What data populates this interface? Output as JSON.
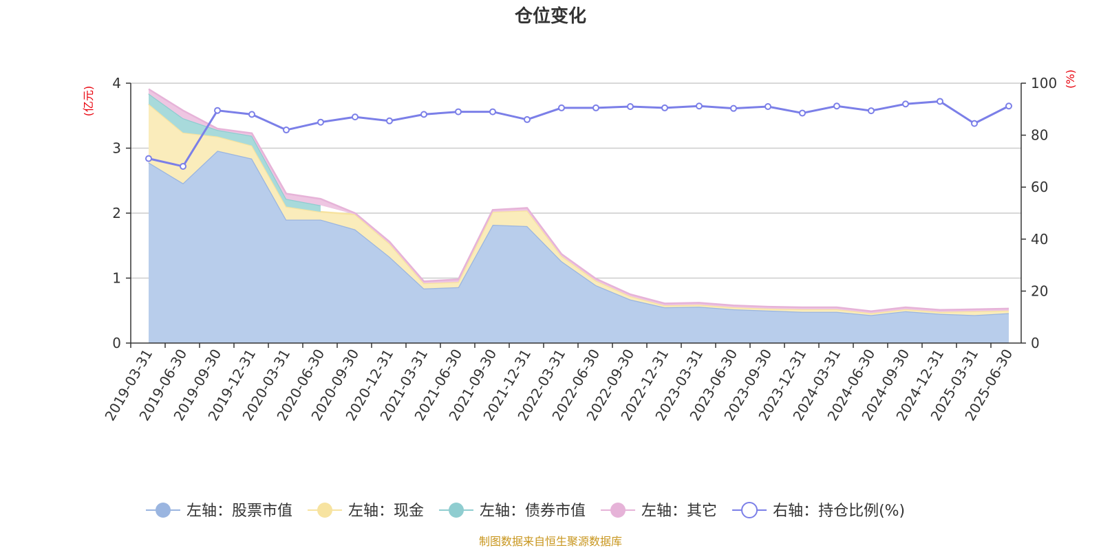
{
  "chart_data": {
    "type": "area",
    "title": "仓位变化",
    "left_unit": "(亿元)",
    "right_unit": "(%)",
    "categories": [
      "2019-03-31",
      "2019-06-30",
      "2019-09-30",
      "2019-12-31",
      "2020-03-31",
      "2020-06-30",
      "2020-09-30",
      "2020-12-31",
      "2021-03-31",
      "2021-06-30",
      "2021-09-30",
      "2021-12-31",
      "2022-03-31",
      "2022-06-30",
      "2022-09-30",
      "2022-12-31",
      "2023-03-31",
      "2023-06-30",
      "2023-09-30",
      "2023-12-31",
      "2024-03-31",
      "2024-06-30",
      "2024-09-30",
      "2024-12-31",
      "2025-03-31",
      "2025-06-30"
    ],
    "left_axis": {
      "min": 0,
      "max": 4,
      "ticks": [
        "0",
        "1",
        "2",
        "3",
        "4"
      ]
    },
    "right_axis": {
      "min": 0,
      "max": 100,
      "ticks": [
        "0",
        "20",
        "40",
        "60",
        "80",
        "100"
      ]
    },
    "series": [
      {
        "name": "左轴：股票市值",
        "axis": "left",
        "kind": "area",
        "color": "#9ab5e0",
        "fill": "#b8cdeb",
        "values": [
          2.78,
          2.46,
          2.96,
          2.84,
          1.9,
          1.9,
          1.75,
          1.33,
          0.84,
          0.86,
          1.82,
          1.8,
          1.26,
          0.89,
          0.67,
          0.55,
          0.56,
          0.52,
          0.5,
          0.48,
          0.48,
          0.43,
          0.49,
          0.45,
          0.43,
          0.46
        ]
      },
      {
        "name": "左轴：现金",
        "axis": "left",
        "kind": "area",
        "color": "#f7e3a0",
        "fill": "#faecbb",
        "values": [
          0.9,
          0.78,
          0.22,
          0.2,
          0.2,
          0.12,
          0.23,
          0.2,
          0.08,
          0.08,
          0.2,
          0.24,
          0.08,
          0.07,
          0.05,
          0.03,
          0.03,
          0.03,
          0.03,
          0.04,
          0.04,
          0.03,
          0.03,
          0.03,
          0.06,
          0.04
        ]
      },
      {
        "name": "左轴：债券市值",
        "axis": "left",
        "kind": "area",
        "color": "#8fcdd0",
        "fill": "#a8dadb",
        "values": [
          0.16,
          0.22,
          0.1,
          0.15,
          0.12,
          0.1,
          0,
          0,
          0,
          0,
          0,
          0,
          0,
          0,
          0,
          0,
          0,
          0,
          0,
          0,
          0,
          0,
          0,
          0,
          0,
          0
        ]
      },
      {
        "name": "左轴：其它",
        "axis": "left",
        "kind": "area",
        "color": "#e6b3d8",
        "fill": "#eec6e2",
        "values": [
          0.07,
          0.12,
          0.02,
          0.04,
          0.08,
          0.1,
          0.02,
          0.03,
          0.03,
          0.04,
          0.03,
          0.04,
          0.03,
          0.03,
          0.03,
          0.03,
          0.03,
          0.03,
          0.03,
          0.03,
          0.03,
          0.03,
          0.03,
          0.03,
          0.03,
          0.03
        ]
      },
      {
        "name": "右轴：持仓比例(%)",
        "axis": "right",
        "kind": "line",
        "color": "#7b7fe8",
        "values": [
          71,
          68,
          89.5,
          88,
          82,
          85,
          87,
          85.5,
          88,
          89,
          89,
          86,
          90.5,
          90.5,
          91,
          90.5,
          91.2,
          90.3,
          91,
          88.5,
          91.2,
          89.4,
          92,
          93,
          84.5,
          91.2
        ]
      }
    ],
    "legend_position": "bottom",
    "grid": true
  },
  "footer": {
    "source": "制图数据来自恒生聚源数据库"
  }
}
